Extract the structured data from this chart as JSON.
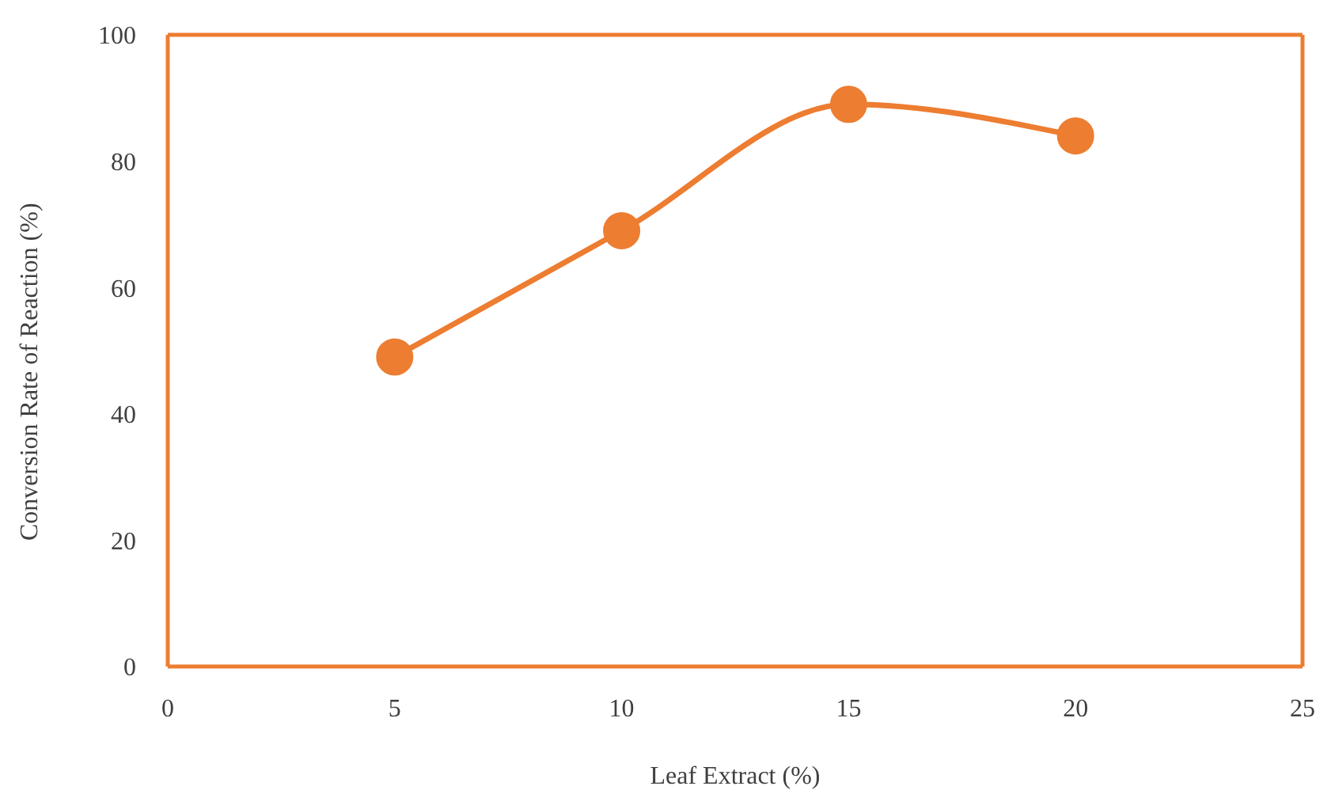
{
  "chart_data": {
    "type": "line",
    "xlabel": "Leaf Extract (%)",
    "ylabel": "Conversion Rate of Reaction (%)",
    "x": [
      5,
      10,
      15,
      20
    ],
    "series": [
      {
        "color": "#ed7d31",
        "values": [
          49,
          69,
          89,
          84
        ]
      }
    ],
    "xlim": [
      0,
      25
    ],
    "xticks": [
      0,
      5,
      10,
      15,
      20,
      25
    ],
    "ylim": [
      0,
      100
    ],
    "yticks": [
      0,
      20,
      40,
      60,
      80,
      100
    ],
    "marker": "circle",
    "line_style": "solid",
    "grid": false,
    "legend": false
  }
}
